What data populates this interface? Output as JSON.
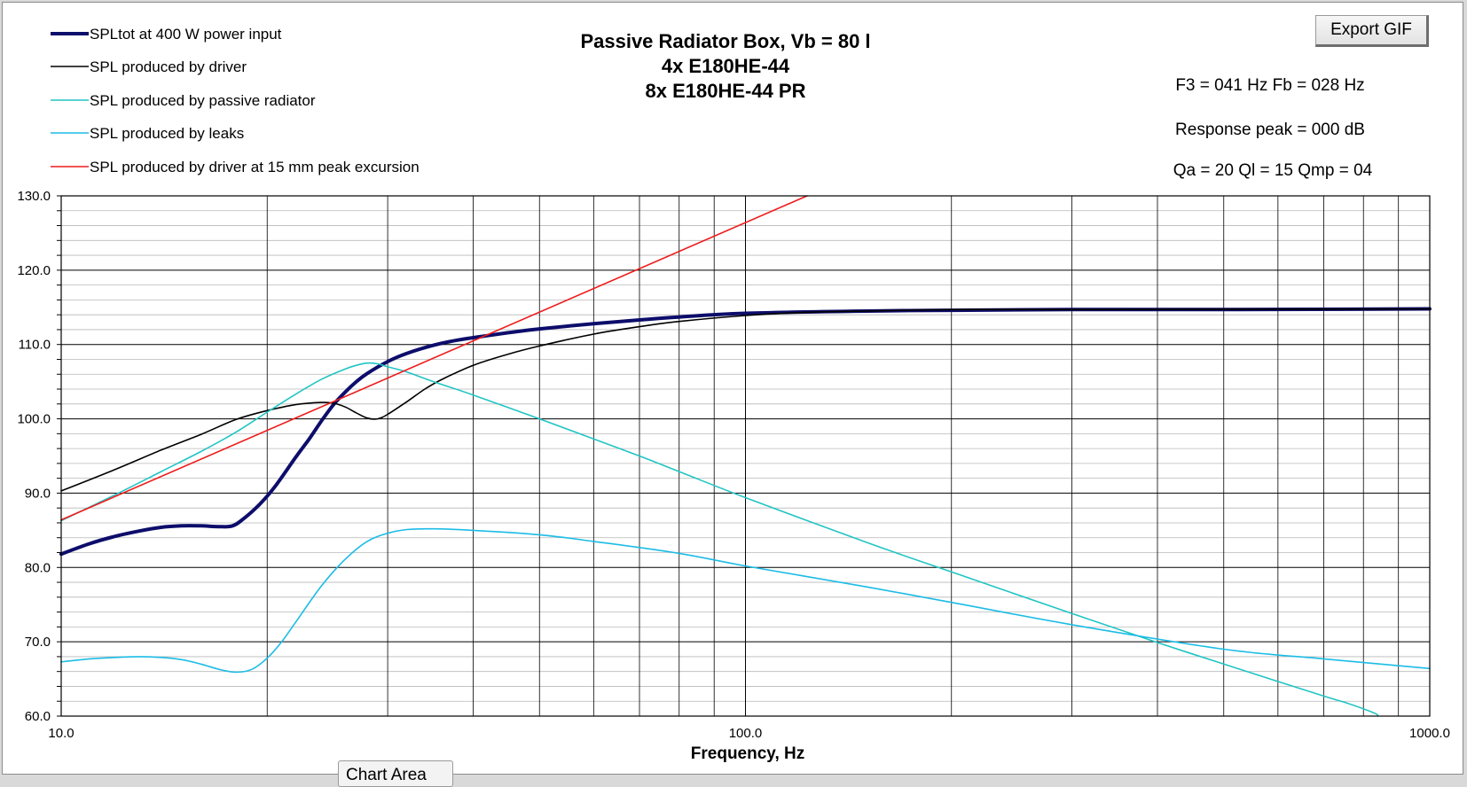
{
  "export_button": {
    "label": "Export GIF"
  },
  "chart_area_tab": {
    "label": "Chart Area"
  },
  "chart_data": {
    "type": "line",
    "title_lines": [
      "Passive Radiator Box, Vb = 80 l",
      "4x E180HE-44",
      "8x E180HE-44 PR"
    ],
    "info_lines": [
      "F3 = 041 Hz  Fb = 028 Hz",
      "Response peak = 000 dB",
      "Qa = 20  Ql = 15  Qmp = 04"
    ],
    "xlabel": "Frequency, Hz",
    "ylabel": "",
    "x_scale": "log",
    "xlim": [
      10,
      1000
    ],
    "ylim": [
      60,
      130
    ],
    "x_tick_labels": [
      {
        "value": 10,
        "label": "10.0"
      },
      {
        "value": 100,
        "label": "100.0"
      },
      {
        "value": 1000,
        "label": "1000.0"
      }
    ],
    "y_tick_labels": [
      {
        "value": 60,
        "label": "60.0"
      },
      {
        "value": 70,
        "label": "70.0"
      },
      {
        "value": 80,
        "label": "80.0"
      },
      {
        "value": 90,
        "label": "90.0"
      },
      {
        "value": 100,
        "label": "100.0"
      },
      {
        "value": 110,
        "label": "110.0"
      },
      {
        "value": 120,
        "label": "120.0"
      },
      {
        "value": 130,
        "label": "130.0"
      }
    ],
    "grid": true,
    "legend_position": "top-left",
    "series": [
      {
        "name": "SPLtot at 400 W power input",
        "color": "#0d0d6b",
        "points": [
          [
            10,
            81.8
          ],
          [
            11,
            83.2
          ],
          [
            12,
            84.2
          ],
          [
            13,
            84.9
          ],
          [
            14,
            85.4
          ],
          [
            15,
            85.6
          ],
          [
            16,
            85.6
          ],
          [
            17,
            85.5
          ],
          [
            17.8,
            85.6
          ],
          [
            18.5,
            86.6
          ],
          [
            19.5,
            88.5
          ],
          [
            20.5,
            90.8
          ],
          [
            22,
            94.8
          ],
          [
            23,
            97.2
          ],
          [
            24,
            99.7
          ],
          [
            25,
            101.9
          ],
          [
            26,
            103.6
          ],
          [
            27,
            105
          ],
          [
            28,
            106.1
          ],
          [
            30,
            107.7
          ],
          [
            32,
            108.8
          ],
          [
            35,
            109.9
          ],
          [
            38,
            110.6
          ],
          [
            42,
            111.2
          ],
          [
            46,
            111.7
          ],
          [
            50,
            112.1
          ],
          [
            60,
            112.8
          ],
          [
            70,
            113.3
          ],
          [
            80,
            113.7
          ],
          [
            100,
            114.2
          ],
          [
            150,
            114.5
          ],
          [
            200,
            114.6
          ],
          [
            300,
            114.7
          ],
          [
            500,
            114.7
          ],
          [
            1000,
            114.8
          ]
        ]
      },
      {
        "name": "SPL produced by driver",
        "color": "#000000",
        "points": [
          [
            10,
            90.3
          ],
          [
            12,
            93.2
          ],
          [
            14,
            95.8
          ],
          [
            16,
            97.9
          ],
          [
            18,
            99.9
          ],
          [
            20,
            101.1
          ],
          [
            22,
            101.9
          ],
          [
            24,
            102.2
          ],
          [
            25,
            102.1
          ],
          [
            26,
            101.6
          ],
          [
            27,
            100.8
          ],
          [
            28,
            100.1
          ],
          [
            29,
            100
          ],
          [
            30,
            100.6
          ],
          [
            32,
            102.3
          ],
          [
            34,
            104
          ],
          [
            36,
            105.3
          ],
          [
            40,
            107.2
          ],
          [
            45,
            108.7
          ],
          [
            50,
            109.8
          ],
          [
            60,
            111.4
          ],
          [
            70,
            112.4
          ],
          [
            80,
            113.1
          ],
          [
            100,
            113.9
          ],
          [
            120,
            114.3
          ],
          [
            150,
            114.5
          ],
          [
            200,
            114.7
          ],
          [
            300,
            114.7
          ],
          [
            1000,
            114.8
          ]
        ]
      },
      {
        "name": "SPL produced by passive radiator",
        "color": "#22c4c4",
        "points": [
          [
            10,
            86.3
          ],
          [
            12,
            89.8
          ],
          [
            14,
            92.9
          ],
          [
            16,
            95.6
          ],
          [
            18,
            98.2
          ],
          [
            20,
            100.9
          ],
          [
            22,
            103.3
          ],
          [
            24,
            105.3
          ],
          [
            26,
            106.7
          ],
          [
            27,
            107.2
          ],
          [
            28,
            107.5
          ],
          [
            29,
            107.4
          ],
          [
            30,
            107
          ],
          [
            32,
            106.3
          ],
          [
            35,
            105
          ],
          [
            40,
            103.2
          ],
          [
            50,
            100
          ],
          [
            60,
            97.3
          ],
          [
            70,
            95
          ],
          [
            80,
            92.9
          ],
          [
            100,
            89.4
          ],
          [
            150,
            83.4
          ],
          [
            200,
            79.4
          ],
          [
            300,
            73.8
          ],
          [
            400,
            69.9
          ],
          [
            500,
            67
          ],
          [
            700,
            62.7
          ],
          [
            760,
            61.7
          ],
          [
            830,
            60.4
          ],
          [
            840,
            60
          ]
        ]
      },
      {
        "name": "SPL produced by leaks",
        "color": "#1cbce6",
        "points": [
          [
            10,
            67.3
          ],
          [
            11,
            67.7
          ],
          [
            12,
            67.9
          ],
          [
            13,
            68
          ],
          [
            14,
            67.9
          ],
          [
            15,
            67.6
          ],
          [
            16,
            67
          ],
          [
            17,
            66.3
          ],
          [
            18,
            65.9
          ],
          [
            19,
            66.3
          ],
          [
            20,
            67.8
          ],
          [
            21,
            70
          ],
          [
            22,
            72.6
          ],
          [
            24,
            77.5
          ],
          [
            26,
            81.1
          ],
          [
            28,
            83.5
          ],
          [
            30,
            84.6
          ],
          [
            32,
            85.1
          ],
          [
            35,
            85.2
          ],
          [
            40,
            85
          ],
          [
            50,
            84.4
          ],
          [
            60,
            83.5
          ],
          [
            80,
            81.9
          ],
          [
            100,
            80.2
          ],
          [
            150,
            77.4
          ],
          [
            200,
            75.3
          ],
          [
            300,
            72.3
          ],
          [
            500,
            69
          ],
          [
            700,
            67.7
          ],
          [
            1000,
            66.4
          ]
        ]
      },
      {
        "name": "SPL produced by driver at 15 mm peak excursion",
        "color": "#ee1c1c",
        "points": [
          [
            10,
            86.4
          ],
          [
            123,
            130
          ]
        ]
      }
    ]
  }
}
